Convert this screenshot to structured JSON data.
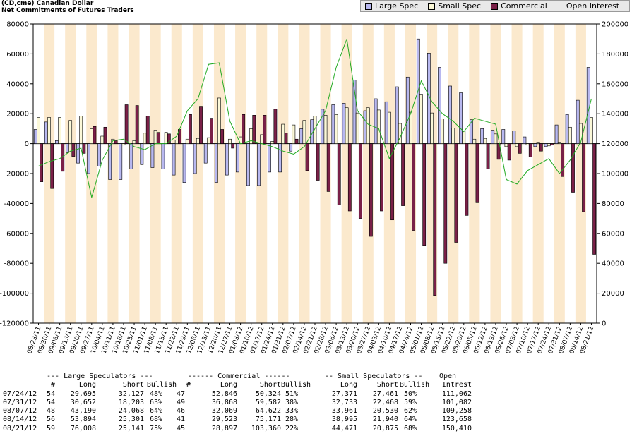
{
  "header": {
    "line1": "(CD,cme) Canadian Dollar",
    "line2": "Net Commitments of Futures Traders"
  },
  "legend": [
    {
      "name": "Large Spec",
      "color": "#b8b8f0",
      "kind": "box"
    },
    {
      "name": "Small Spec",
      "color": "#fbf8d8",
      "kind": "box"
    },
    {
      "name": "Commercial",
      "color": "#7a2048",
      "kind": "box"
    },
    {
      "name": "Open Interest",
      "color": "#22aa22",
      "kind": "line"
    }
  ],
  "chart_data": {
    "type": "bar",
    "title": "Net Commitments of Futures Traders",
    "left_axis": {
      "min": -120000,
      "max": 80000,
      "step": 20000
    },
    "right_axis": {
      "min": 0,
      "max": 200000,
      "step": 20000
    },
    "grid": false,
    "legend_position": "top-right",
    "categories": [
      "08/23/11",
      "08/30/11",
      "09/06/11",
      "09/13/11",
      "09/20/11",
      "09/27/11",
      "10/04/11",
      "10/11/11",
      "10/18/11",
      "10/25/11",
      "11/01/11",
      "11/08/11",
      "11/15/11",
      "11/22/11",
      "11/29/11",
      "12/06/11",
      "12/13/11",
      "12/20/11",
      "12/27/11",
      "01/03/12",
      "01/10/12",
      "01/17/12",
      "01/24/12",
      "01/31/12",
      "02/07/12",
      "02/14/12",
      "02/21/12",
      "02/28/12",
      "03/06/12",
      "03/13/12",
      "03/20/12",
      "03/27/12",
      "04/03/12",
      "04/10/12",
      "04/17/12",
      "04/24/12",
      "05/01/12",
      "05/08/12",
      "05/15/12",
      "05/22/12",
      "05/29/12",
      "06/05/12",
      "06/12/12",
      "06/19/12",
      "06/26/12",
      "07/03/12",
      "07/10/12",
      "07/17/12",
      "07/24/12",
      "07/31/12",
      "08/07/12",
      "08/14/12",
      "08/21/12"
    ],
    "series": [
      {
        "name": "Large Spec",
        "axis": "left",
        "values": [
          9500,
          14500,
          2000,
          -6000,
          -13000,
          -20000,
          -15000,
          -24000,
          -24000,
          -17000,
          -14000,
          -16000,
          -17000,
          -21000,
          -26000,
          -20000,
          -13000,
          -26000,
          -21000,
          -19000,
          -28000,
          -28000,
          -19000,
          -19000,
          -5000,
          10000,
          16000,
          23000,
          26000,
          27000,
          42500,
          22000,
          30000,
          28000,
          38000,
          44500,
          70000,
          60500,
          51000,
          38500,
          34000,
          16000,
          10000,
          9000,
          9500,
          8500,
          4500,
          -2000,
          -2000,
          12500,
          19500,
          29000,
          51000
        ]
      },
      {
        "name": "Small Spec",
        "axis": "left",
        "values": [
          17500,
          17500,
          17500,
          15500,
          18500,
          10000,
          5000,
          3000,
          -1000,
          2000,
          7000,
          9000,
          7500,
          2500,
          3000,
          3500,
          4000,
          30500,
          3000,
          4500,
          10000,
          6000,
          1500,
          13000,
          12500,
          15500,
          18500,
          19000,
          19500,
          24000,
          20500,
          24000,
          22500,
          21000,
          13500,
          21000,
          33000,
          20500,
          16500,
          10500,
          8500,
          3000,
          3500,
          6500,
          -2000,
          -2000,
          -1000,
          1000,
          -1500,
          1000,
          11000,
          13500,
          17500
        ]
      },
      {
        "name": "Commercial",
        "axis": "left",
        "values": [
          -25500,
          -30000,
          -18500,
          -8500,
          -6500,
          11500,
          11000,
          2000,
          26000,
          25500,
          18500,
          7500,
          6500,
          9500,
          19500,
          25000,
          17000,
          9500,
          -3000,
          19500,
          19000,
          19000,
          23000,
          7000,
          3000,
          -18000,
          -24500,
          -32000,
          -41000,
          -45000,
          -50000,
          -62000,
          -45000,
          -51000,
          -41500,
          -58000,
          -68000,
          -101500,
          -80000,
          -66000,
          -48000,
          -39500,
          -17000,
          -10500,
          -11000,
          -6500,
          -9000,
          -5000,
          -1000,
          -22000,
          -32500,
          -45500,
          -74000
        ]
      },
      {
        "name": "Open Interest",
        "axis": "right",
        "type": "line",
        "values": [
          105000,
          108000,
          110000,
          115000,
          117000,
          84000,
          109000,
          122000,
          123000,
          118000,
          116000,
          120000,
          120000,
          125000,
          142000,
          150000,
          173000,
          174000,
          135000,
          120000,
          122000,
          120000,
          118000,
          115000,
          113000,
          118000,
          130000,
          142000,
          171000,
          190000,
          142000,
          133000,
          130000,
          110000,
          124000,
          140000,
          162000,
          148000,
          140000,
          135000,
          128000,
          137000,
          135000,
          133000,
          96000,
          93000,
          102000,
          106000,
          110000,
          100000,
          109000,
          121000,
          150000
        ]
      }
    ]
  },
  "table": {
    "group_headers": [
      "--- Large Speculators ---",
      "------ Commercial ------",
      "-- Small Speculators --",
      "Open"
    ],
    "col_headers": [
      "#",
      "Long",
      "Short",
      "Bullish",
      "#",
      "Long",
      "Short",
      "Bullish",
      "Long",
      "Short",
      "Bullish",
      "Intrest"
    ],
    "rows": [
      [
        "07/24/12",
        "54",
        "29,695",
        "32,127",
        "48%",
        "47",
        "52,846",
        "50,324",
        "51%",
        "27,371",
        "27,461",
        "50%",
        "111,062"
      ],
      [
        "07/31/12",
        "54",
        "30,652",
        "18,203",
        "63%",
        "49",
        "36,868",
        "59,582",
        "38%",
        "32,733",
        "22,468",
        "59%",
        "101,082"
      ],
      [
        "08/07/12",
        "48",
        "43,190",
        "24,068",
        "64%",
        "46",
        "32,069",
        "64,622",
        "33%",
        "33,961",
        "20,530",
        "62%",
        "109,258"
      ],
      [
        "08/14/12",
        "56",
        "53,894",
        "25,301",
        "68%",
        "41",
        "29,523",
        "75,171",
        "28%",
        "38,995",
        "21,940",
        "64%",
        "123,658"
      ],
      [
        "08/21/12",
        "59",
        "76,008",
        "25,141",
        "75%",
        "45",
        "28,897",
        "103,360",
        "22%",
        "44,471",
        "20,875",
        "68%",
        "150,410"
      ]
    ]
  }
}
